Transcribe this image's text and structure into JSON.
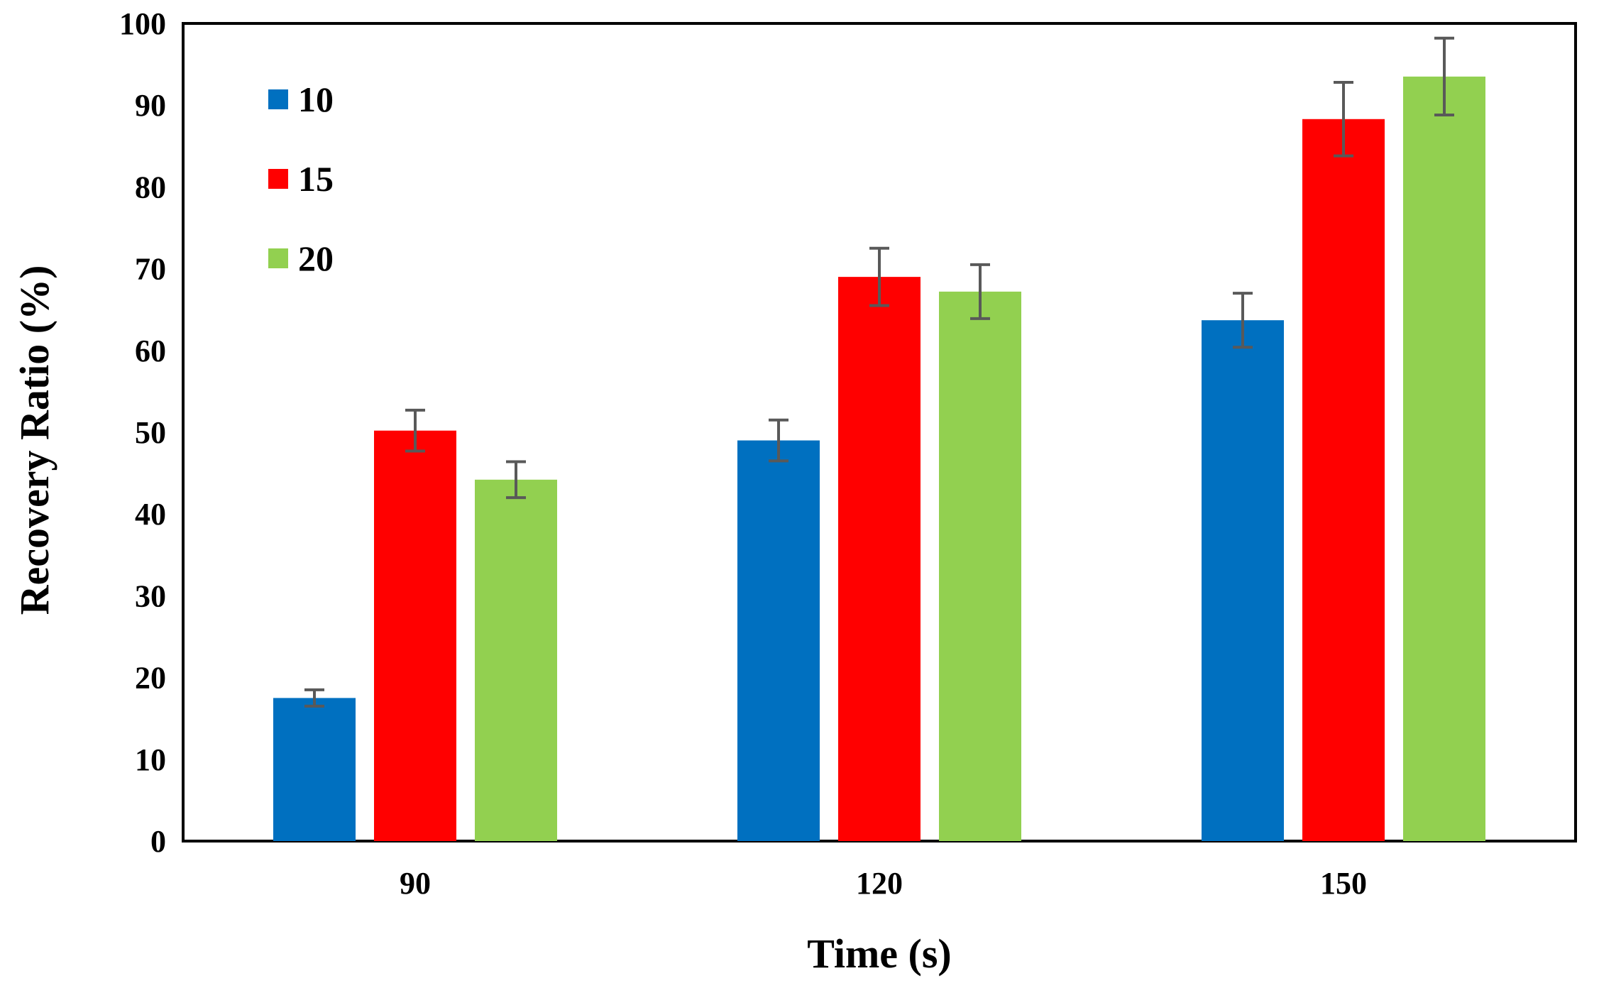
{
  "chart_data": {
    "type": "bar",
    "title": "",
    "xlabel": "Time (s)",
    "ylabel": "Recovery Ratio (%)",
    "categories": [
      "90",
      "120",
      "150"
    ],
    "ylim": [
      0,
      100
    ],
    "yticks": [
      "0",
      "10",
      "20",
      "30",
      "40",
      "50",
      "60",
      "70",
      "80",
      "90",
      "100"
    ],
    "grid": false,
    "legend_position": "top-left",
    "series": [
      {
        "name": "10",
        "color": "#0070C0",
        "values": [
          17.5,
          49,
          63.7
        ],
        "errors": [
          1.0,
          2.5,
          3.3
        ]
      },
      {
        "name": "15",
        "color": "#FF0000",
        "values": [
          50.2,
          69,
          88.3
        ],
        "errors": [
          2.5,
          3.5,
          4.5
        ]
      },
      {
        "name": "20",
        "color": "#92D050",
        "values": [
          44.2,
          67.2,
          93.5
        ],
        "errors": [
          2.2,
          3.3,
          4.7
        ]
      }
    ],
    "error_bar_color": "#595959"
  }
}
